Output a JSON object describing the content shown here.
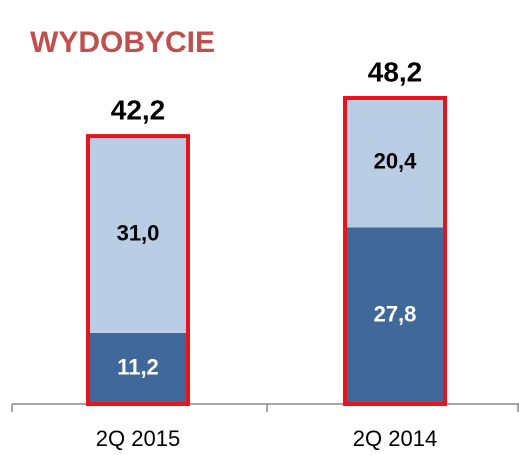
{
  "chart_data": {
    "type": "stacked_bar",
    "title": "WYDOBYCIE",
    "categories": [
      "2Q 2015",
      "2Q 2014"
    ],
    "series": [
      {
        "color": "#41689b",
        "label_color": "#ffffff",
        "values": [
          11.2,
          27.8
        ],
        "value_labels": [
          "11,2",
          "27,8"
        ]
      },
      {
        "color": "#b9cde5",
        "label_color": "#000000",
        "values": [
          31.0,
          20.4
        ],
        "value_labels": [
          "31,0",
          "20,4"
        ]
      }
    ],
    "totals": [
      42.2,
      48.2
    ],
    "total_labels": [
      "42,2",
      "48,2"
    ],
    "outline_color": "#e8141b",
    "title_color": "#c0504d"
  }
}
